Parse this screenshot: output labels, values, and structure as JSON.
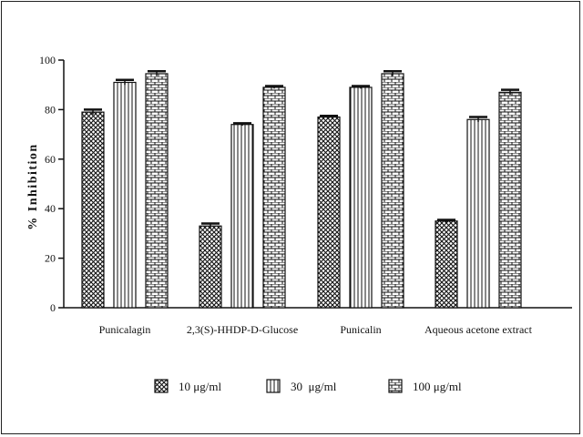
{
  "chart_data": {
    "type": "bar",
    "title": "",
    "xlabel": "",
    "ylabel": "% Inhibition",
    "ylim": [
      0,
      100
    ],
    "yticks": [
      0,
      20,
      40,
      60,
      80,
      100
    ],
    "grid": false,
    "legend_position": "bottom",
    "categories": [
      "Punicalagin",
      "2,3(S)-HHDP-D-Glucose",
      "Punicalin",
      "Aqueous acetone extract"
    ],
    "series": [
      {
        "name": "10 μg/ml",
        "pattern": "crosshatch",
        "values": [
          79,
          33,
          77,
          35
        ],
        "errors": [
          1,
          1,
          0.5,
          0.5
        ]
      },
      {
        "name": "30  μg/ml",
        "pattern": "vertical-lines",
        "values": [
          91,
          74,
          89,
          76
        ],
        "errors": [
          1,
          0.5,
          0.5,
          1
        ]
      },
      {
        "name": "100 μg/ml",
        "pattern": "brick",
        "values": [
          94.5,
          89,
          94.5,
          87
        ],
        "errors": [
          1,
          0.5,
          1,
          1
        ]
      }
    ],
    "colors": {
      "ink": "#111111",
      "bar_fill": "#ffffff"
    }
  }
}
